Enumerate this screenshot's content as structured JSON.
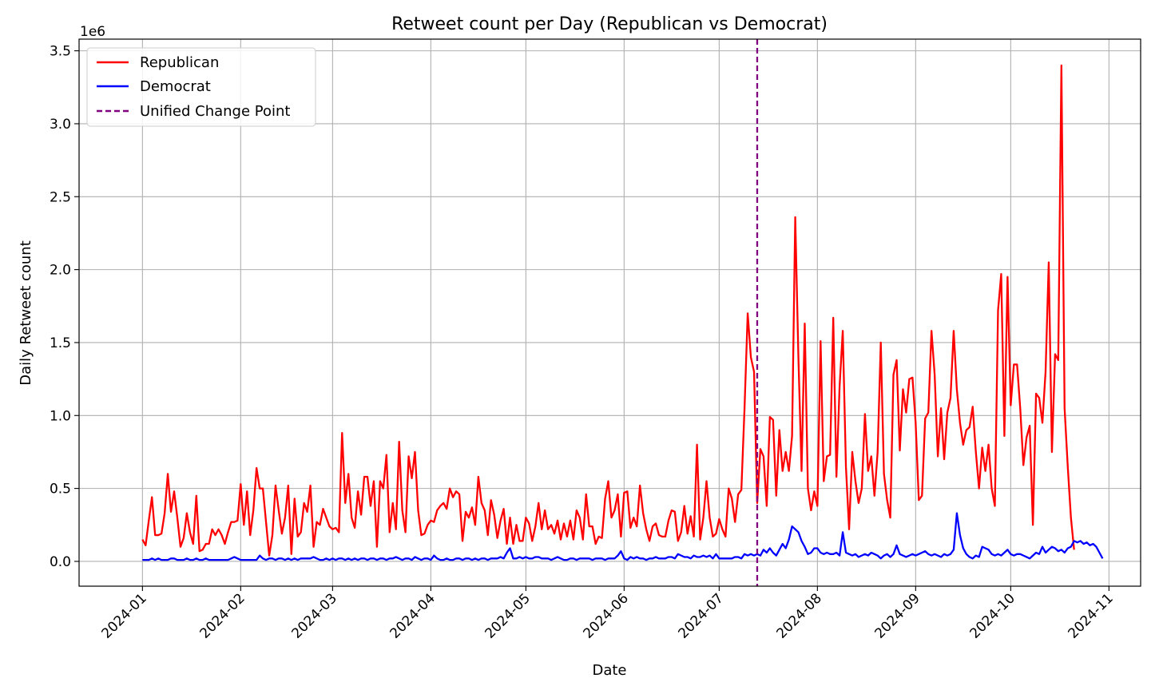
{
  "chart_data": {
    "type": "line",
    "title": "Retweet count per Day (Republican vs Democrat)",
    "xlabel": "Date",
    "ylabel": "Daily Retweet count",
    "y_offset_label": "1e6",
    "grid": true,
    "legend_position": "top-left",
    "x_start": "2024-01-01",
    "x_end": "2024-10-24",
    "xlim_days": [
      -20,
      315
    ],
    "ylim": [
      -0.17,
      3.58
    ],
    "x_ticks": [
      {
        "label": "2024-01",
        "day": 0
      },
      {
        "label": "2024-02",
        "day": 31
      },
      {
        "label": "2024-03",
        "day": 60
      },
      {
        "label": "2024-04",
        "day": 91
      },
      {
        "label": "2024-05",
        "day": 121
      },
      {
        "label": "2024-06",
        "day": 152
      },
      {
        "label": "2024-07",
        "day": 182
      },
      {
        "label": "2024-08",
        "day": 213
      },
      {
        "label": "2024-09",
        "day": 244
      },
      {
        "label": "2024-10",
        "day": 274
      },
      {
        "label": "2024-11",
        "day": 305
      }
    ],
    "y_ticks": [
      {
        "label": "0.0",
        "value": 0.0
      },
      {
        "label": "0.5",
        "value": 0.5
      },
      {
        "label": "1.0",
        "value": 1.0
      },
      {
        "label": "1.5",
        "value": 1.5
      },
      {
        "label": "2.0",
        "value": 2.0
      },
      {
        "label": "2.5",
        "value": 2.5
      },
      {
        "label": "3.0",
        "value": 3.0
      },
      {
        "label": "3.5",
        "value": 3.5
      }
    ],
    "change_point": {
      "name": "Unified Change Point",
      "date": "2024-07-13",
      "day": 194,
      "color": "#800080"
    },
    "series": [
      {
        "name": "Republican",
        "color": "#ff0000",
        "values": [
          0.15,
          0.11,
          0.28,
          0.44,
          0.18,
          0.18,
          0.19,
          0.33,
          0.6,
          0.34,
          0.48,
          0.3,
          0.1,
          0.16,
          0.33,
          0.2,
          0.12,
          0.45,
          0.07,
          0.08,
          0.12,
          0.12,
          0.22,
          0.18,
          0.22,
          0.18,
          0.12,
          0.2,
          0.27,
          0.27,
          0.28,
          0.53,
          0.25,
          0.48,
          0.18,
          0.35,
          0.64,
          0.5,
          0.5,
          0.27,
          0.04,
          0.18,
          0.52,
          0.35,
          0.19,
          0.3,
          0.52,
          0.05,
          0.43,
          0.17,
          0.2,
          0.4,
          0.34,
          0.52,
          0.1,
          0.27,
          0.25,
          0.36,
          0.3,
          0.24,
          0.22,
          0.23,
          0.2,
          0.88,
          0.4,
          0.6,
          0.3,
          0.23,
          0.48,
          0.32,
          0.58,
          0.58,
          0.38,
          0.55,
          0.1,
          0.55,
          0.5,
          0.73,
          0.2,
          0.4,
          0.22,
          0.82,
          0.35,
          0.2,
          0.72,
          0.57,
          0.75,
          0.35,
          0.18,
          0.19,
          0.25,
          0.28,
          0.27,
          0.35,
          0.38,
          0.4,
          0.36,
          0.5,
          0.44,
          0.48,
          0.46,
          0.14,
          0.34,
          0.3,
          0.37,
          0.25,
          0.58,
          0.4,
          0.35,
          0.18,
          0.42,
          0.32,
          0.16,
          0.28,
          0.36,
          0.12,
          0.3,
          0.12,
          0.25,
          0.14,
          0.14,
          0.3,
          0.26,
          0.14,
          0.24,
          0.4,
          0.22,
          0.35,
          0.22,
          0.25,
          0.19,
          0.28,
          0.15,
          0.26,
          0.17,
          0.28,
          0.15,
          0.35,
          0.3,
          0.15,
          0.46,
          0.24,
          0.24,
          0.12,
          0.17,
          0.16,
          0.43,
          0.55,
          0.3,
          0.35,
          0.46,
          0.17,
          0.47,
          0.48,
          0.23,
          0.3,
          0.24,
          0.52,
          0.33,
          0.22,
          0.14,
          0.24,
          0.26,
          0.18,
          0.17,
          0.17,
          0.28,
          0.35,
          0.34,
          0.14,
          0.2,
          0.38,
          0.19,
          0.31,
          0.17,
          0.8,
          0.15,
          0.3,
          0.55,
          0.3,
          0.17,
          0.19,
          0.29,
          0.22,
          0.17,
          0.5,
          0.43,
          0.27,
          0.46,
          0.49,
          1.05,
          1.7,
          1.4,
          1.3,
          0.4,
          0.77,
          0.72,
          0.38,
          0.99,
          0.97,
          0.45,
          0.9,
          0.62,
          0.75,
          0.62,
          0.86,
          2.36,
          1.4,
          0.62,
          1.63,
          0.5,
          0.35,
          0.48,
          0.38,
          1.51,
          0.55,
          0.72,
          0.73,
          1.67,
          0.58,
          1.2,
          1.58,
          0.65,
          0.22,
          0.75,
          0.55,
          0.4,
          0.5,
          1.01,
          0.62,
          0.72,
          0.45,
          0.75,
          1.5,
          0.6,
          0.42,
          0.3,
          1.28,
          1.38,
          0.76,
          1.18,
          1.02,
          1.25,
          1.26,
          0.95,
          0.42,
          0.45,
          0.98,
          1.02,
          1.58,
          1.28,
          0.72,
          1.05,
          0.7,
          1.02,
          1.12,
          1.58,
          1.18,
          0.95,
          0.8,
          0.9,
          0.92,
          1.06,
          0.75,
          0.5,
          0.78,
          0.62,
          0.8,
          0.5,
          0.38,
          1.72,
          1.97,
          0.86,
          1.95,
          1.07,
          1.35,
          1.35,
          1.05,
          0.66,
          0.85,
          0.93,
          0.25,
          1.15,
          1.12,
          0.95,
          1.3,
          2.05,
          0.75,
          1.42,
          1.38,
          3.4,
          1.05,
          0.65,
          0.3,
          0.08
        ]
      },
      {
        "name": "Democrat",
        "color": "#0000ff",
        "values": [
          0.01,
          0.01,
          0.01,
          0.02,
          0.01,
          0.02,
          0.01,
          0.01,
          0.01,
          0.02,
          0.02,
          0.01,
          0.01,
          0.01,
          0.02,
          0.01,
          0.01,
          0.02,
          0.01,
          0.01,
          0.02,
          0.01,
          0.01,
          0.01,
          0.01,
          0.01,
          0.01,
          0.01,
          0.02,
          0.03,
          0.02,
          0.01,
          0.01,
          0.01,
          0.01,
          0.01,
          0.01,
          0.04,
          0.02,
          0.01,
          0.02,
          0.02,
          0.01,
          0.02,
          0.02,
          0.01,
          0.02,
          0.01,
          0.02,
          0.01,
          0.02,
          0.02,
          0.02,
          0.02,
          0.03,
          0.02,
          0.01,
          0.01,
          0.02,
          0.01,
          0.02,
          0.01,
          0.02,
          0.02,
          0.01,
          0.02,
          0.01,
          0.02,
          0.01,
          0.02,
          0.02,
          0.01,
          0.02,
          0.02,
          0.01,
          0.02,
          0.02,
          0.01,
          0.02,
          0.02,
          0.03,
          0.02,
          0.01,
          0.02,
          0.02,
          0.01,
          0.03,
          0.02,
          0.01,
          0.02,
          0.02,
          0.01,
          0.04,
          0.02,
          0.01,
          0.01,
          0.02,
          0.01,
          0.01,
          0.02,
          0.02,
          0.01,
          0.02,
          0.02,
          0.01,
          0.02,
          0.01,
          0.02,
          0.02,
          0.01,
          0.02,
          0.02,
          0.02,
          0.03,
          0.02,
          0.06,
          0.09,
          0.02,
          0.02,
          0.03,
          0.02,
          0.03,
          0.02,
          0.02,
          0.03,
          0.03,
          0.02,
          0.02,
          0.02,
          0.01,
          0.02,
          0.03,
          0.02,
          0.01,
          0.01,
          0.02,
          0.02,
          0.01,
          0.02,
          0.02,
          0.02,
          0.02,
          0.01,
          0.02,
          0.02,
          0.02,
          0.01,
          0.02,
          0.02,
          0.02,
          0.04,
          0.07,
          0.02,
          0.01,
          0.03,
          0.02,
          0.03,
          0.02,
          0.02,
          0.01,
          0.02,
          0.02,
          0.03,
          0.02,
          0.02,
          0.02,
          0.03,
          0.03,
          0.02,
          0.05,
          0.04,
          0.03,
          0.03,
          0.02,
          0.04,
          0.03,
          0.03,
          0.04,
          0.03,
          0.04,
          0.02,
          0.05,
          0.02,
          0.02,
          0.02,
          0.02,
          0.02,
          0.03,
          0.03,
          0.02,
          0.05,
          0.04,
          0.05,
          0.04,
          0.05,
          0.04,
          0.08,
          0.06,
          0.09,
          0.06,
          0.04,
          0.08,
          0.12,
          0.09,
          0.15,
          0.24,
          0.22,
          0.2,
          0.14,
          0.1,
          0.05,
          0.06,
          0.09,
          0.09,
          0.06,
          0.05,
          0.06,
          0.05,
          0.05,
          0.06,
          0.04,
          0.2,
          0.06,
          0.05,
          0.04,
          0.05,
          0.03,
          0.04,
          0.05,
          0.04,
          0.06,
          0.05,
          0.04,
          0.02,
          0.04,
          0.05,
          0.03,
          0.05,
          0.11,
          0.05,
          0.04,
          0.03,
          0.04,
          0.05,
          0.04,
          0.05,
          0.06,
          0.07,
          0.05,
          0.04,
          0.05,
          0.04,
          0.03,
          0.05,
          0.04,
          0.05,
          0.08,
          0.33,
          0.18,
          0.09,
          0.05,
          0.03,
          0.02,
          0.04,
          0.03,
          0.1,
          0.09,
          0.08,
          0.05,
          0.04,
          0.05,
          0.04,
          0.06,
          0.08,
          0.05,
          0.04,
          0.05,
          0.05,
          0.04,
          0.03,
          0.02,
          0.04,
          0.06,
          0.05,
          0.1,
          0.06,
          0.08,
          0.1,
          0.09,
          0.07,
          0.08,
          0.06,
          0.09,
          0.1,
          0.14,
          0.13,
          0.14,
          0.12,
          0.13,
          0.11,
          0.12,
          0.1,
          0.06,
          0.02
        ]
      }
    ]
  }
}
